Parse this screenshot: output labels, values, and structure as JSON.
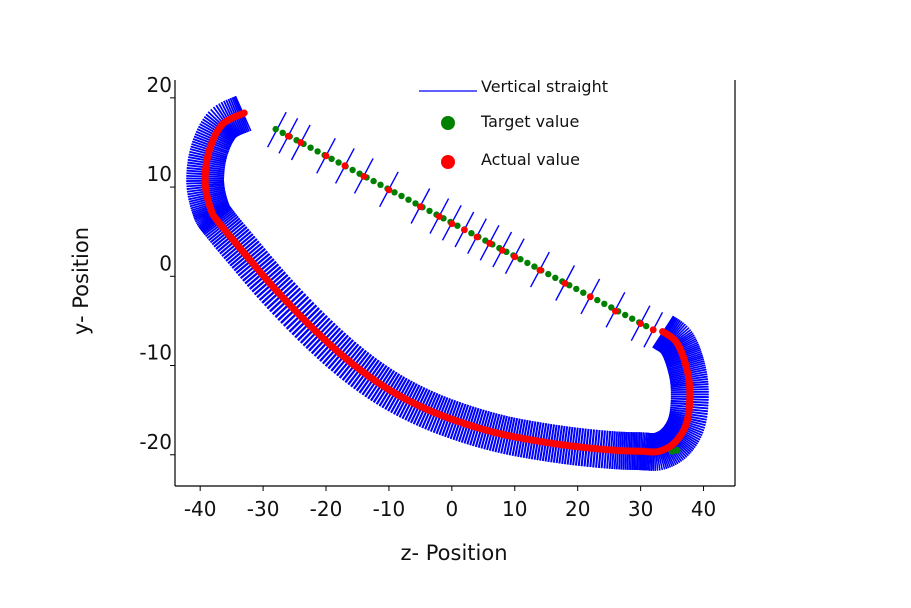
{
  "chart_data": {
    "type": "scatter",
    "title": "",
    "xlabel": "z- Position",
    "ylabel": "y- Position",
    "xlim": [
      -44,
      45
    ],
    "ylim": [
      -23.5,
      22
    ],
    "xticks": [
      -40,
      -30,
      -20,
      -10,
      0,
      10,
      20,
      30,
      40
    ],
    "yticks": [
      20,
      10,
      0,
      -10,
      -20
    ],
    "xtick_labels": [
      "-40",
      "-30",
      "-20",
      "-10",
      "0",
      "10",
      "20",
      "30",
      "40"
    ],
    "ytick_labels": [
      "20",
      "10",
      "0",
      "-10",
      "-20"
    ],
    "grid": false,
    "legend": {
      "placement": "top-center",
      "entries": [
        {
          "label": "Vertical straight",
          "marker": "line",
          "color": "#0000ff"
        },
        {
          "label": "Target value",
          "marker": "dot",
          "color": "#008000"
        },
        {
          "label": "Actual value",
          "marker": "dot",
          "color": "#ff0000"
        }
      ]
    },
    "series": [
      {
        "name": "Target value",
        "color": "#008000",
        "straight": {
          "from": [
            -28,
            16.5
          ],
          "to": [
            32,
            -6
          ],
          "points": 55
        }
      },
      {
        "name": "Actual value",
        "color": "#ff0000",
        "straight_points": [
          [
            -26,
            15.7
          ],
          [
            -24,
            15.0
          ],
          [
            -20,
            13.5
          ],
          [
            -17,
            12.4
          ],
          [
            -14,
            11.2
          ],
          [
            -10,
            9.7
          ],
          [
            -5,
            7.8
          ],
          [
            -2,
            6.7
          ],
          [
            0,
            5.9
          ],
          [
            2,
            5.2
          ],
          [
            4,
            4.4
          ],
          [
            6,
            3.7
          ],
          [
            8,
            2.9
          ],
          [
            10,
            2.2
          ],
          [
            14,
            0.7
          ],
          [
            18,
            -0.8
          ],
          [
            22,
            -2.3
          ],
          [
            26,
            -3.9
          ],
          [
            30,
            -5.3
          ],
          [
            32,
            -6.0
          ]
        ],
        "curve_points": [
          [
            -33,
            18.3
          ],
          [
            -36.5,
            17.0
          ],
          [
            -38.6,
            14.0
          ],
          [
            -39.2,
            10.5
          ],
          [
            -38.3,
            7.5
          ],
          [
            -37,
            6.0
          ],
          [
            -33,
            2.6
          ],
          [
            -28,
            -1.5
          ],
          [
            -22,
            -5.9
          ],
          [
            -16,
            -9.7
          ],
          [
            -10,
            -12.7
          ],
          [
            -4,
            -14.9
          ],
          [
            2,
            -16.5
          ],
          [
            8,
            -17.7
          ],
          [
            14,
            -18.5
          ],
          [
            20,
            -19.1
          ],
          [
            26,
            -19.5
          ],
          [
            30,
            -19.6
          ],
          [
            33,
            -19.6
          ],
          [
            35.6,
            -18.5
          ],
          [
            37.4,
            -16.2
          ],
          [
            37.8,
            -12.5
          ],
          [
            37.0,
            -9.5
          ],
          [
            35.6,
            -7.3
          ],
          [
            33.5,
            -6.2
          ]
        ]
      },
      {
        "name": "Vertical straight",
        "color": "#0000ff",
        "band_half_width": 3,
        "straight_tick_x": [
          -27.8,
          -26,
          -24,
          -20,
          -17,
          -14,
          -10,
          -5,
          -2,
          0,
          2,
          4,
          6,
          8,
          10,
          14,
          18,
          22,
          26,
          30,
          32
        ]
      }
    ]
  }
}
